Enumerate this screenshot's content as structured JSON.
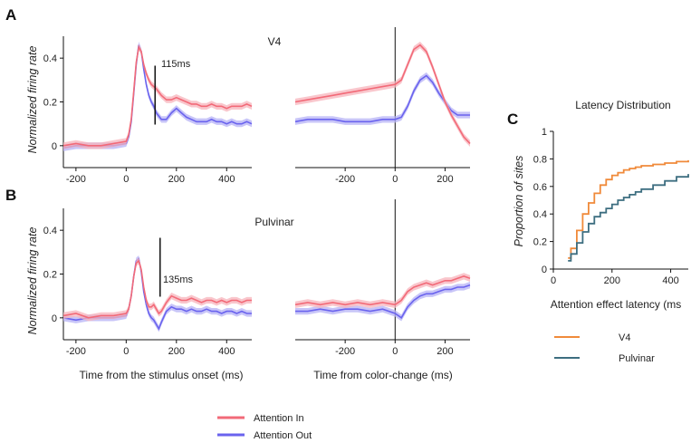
{
  "colors": {
    "attention_in": "#f26a78",
    "attention_in_band": "#f7b3bb",
    "attention_out": "#6a63ee",
    "attention_out_band": "#b6b1f6",
    "v4_latency": "#f08a3a",
    "pulvinar_latency": "#3d6e80",
    "axis": "#111111"
  },
  "panels": {
    "a_letter": "A",
    "b_letter": "B",
    "c_letter": "C",
    "a_title": "V4",
    "b_title": "Pulvinar",
    "a_marker": "115ms",
    "b_marker": "135ms",
    "ylabel": "Normalized firing rate",
    "xlabel_stim": "Time from the stimulus onset (ms)",
    "xlabel_color": "Time from color-change (ms)",
    "y_ticks": [
      "0",
      "0.2",
      "0.4"
    ],
    "x_ticks_stim": [
      "-200",
      "0",
      "200",
      "400"
    ],
    "x_ticks_color": [
      "-200",
      "0",
      "200"
    ]
  },
  "legend_main": {
    "attention_in": "Attention In",
    "attention_out": "Attention Out"
  },
  "panel_c": {
    "title": "Latency Distribution",
    "ylabel": "Proportion of sites",
    "xlabel": "Attention effect latency (ms",
    "y_ticks": [
      "0",
      "0.2",
      "0.4",
      "0.6",
      "0.8",
      "1"
    ],
    "x_ticks": [
      "0",
      "200",
      "400"
    ],
    "legend_v4": "V4",
    "legend_pulvinar": "Pulvinar"
  },
  "chart_data": [
    {
      "type": "line",
      "panel": "A-left",
      "title": "V4",
      "xlabel": "",
      "ylabel": "Normalized firing rate",
      "xlim": [
        -250,
        500
      ],
      "ylim": [
        -0.1,
        0.5
      ],
      "marker_latency_ms": 115,
      "series": [
        {
          "name": "Attention In",
          "x": [
            -250,
            -200,
            -150,
            -100,
            -50,
            0,
            10,
            20,
            30,
            40,
            50,
            60,
            70,
            80,
            90,
            100,
            110,
            120,
            140,
            160,
            180,
            200,
            220,
            240,
            260,
            280,
            300,
            320,
            340,
            360,
            380,
            400,
            420,
            440,
            460,
            480,
            500
          ],
          "y": [
            0,
            0.01,
            0,
            0,
            0.01,
            0.02,
            0.05,
            0.12,
            0.25,
            0.38,
            0.45,
            0.43,
            0.37,
            0.33,
            0.3,
            0.28,
            0.27,
            0.26,
            0.23,
            0.21,
            0.21,
            0.22,
            0.21,
            0.2,
            0.19,
            0.19,
            0.18,
            0.18,
            0.19,
            0.18,
            0.18,
            0.17,
            0.18,
            0.18,
            0.18,
            0.19,
            0.18
          ]
        },
        {
          "name": "Attention Out",
          "x": [
            -250,
            -200,
            -150,
            -100,
            -50,
            0,
            10,
            20,
            30,
            40,
            50,
            60,
            70,
            80,
            90,
            100,
            110,
            120,
            140,
            160,
            180,
            200,
            220,
            240,
            260,
            280,
            300,
            320,
            340,
            360,
            380,
            400,
            420,
            440,
            460,
            480,
            500
          ],
          "y": [
            -0.01,
            0,
            0,
            0,
            0,
            0.01,
            0.04,
            0.11,
            0.24,
            0.37,
            0.46,
            0.43,
            0.35,
            0.28,
            0.23,
            0.2,
            0.18,
            0.15,
            0.12,
            0.12,
            0.15,
            0.17,
            0.15,
            0.13,
            0.12,
            0.11,
            0.11,
            0.11,
            0.12,
            0.11,
            0.11,
            0.1,
            0.11,
            0.1,
            0.1,
            0.11,
            0.1
          ]
        }
      ]
    },
    {
      "type": "line",
      "panel": "A-right",
      "xlabel": "",
      "ylabel": "",
      "xlim": [
        -400,
        300
      ],
      "ylim": [
        -0.1,
        0.5
      ],
      "series": [
        {
          "name": "Attention In",
          "x": [
            -400,
            -350,
            -300,
            -250,
            -200,
            -150,
            -100,
            -50,
            0,
            25,
            50,
            75,
            100,
            125,
            150,
            175,
            200,
            225,
            250,
            275,
            300
          ],
          "y": [
            0.2,
            0.21,
            0.22,
            0.23,
            0.24,
            0.25,
            0.26,
            0.27,
            0.28,
            0.3,
            0.37,
            0.44,
            0.46,
            0.43,
            0.36,
            0.28,
            0.2,
            0.14,
            0.09,
            0.04,
            0.01
          ]
        },
        {
          "name": "Attention Out",
          "x": [
            -400,
            -350,
            -300,
            -250,
            -200,
            -150,
            -100,
            -50,
            0,
            25,
            50,
            75,
            100,
            125,
            150,
            175,
            200,
            225,
            250,
            275,
            300
          ],
          "y": [
            0.11,
            0.12,
            0.12,
            0.12,
            0.11,
            0.11,
            0.11,
            0.12,
            0.12,
            0.13,
            0.18,
            0.25,
            0.3,
            0.32,
            0.29,
            0.24,
            0.2,
            0.16,
            0.14,
            0.14,
            0.14
          ]
        }
      ]
    },
    {
      "type": "line",
      "panel": "B-left",
      "title": "Pulvinar",
      "xlabel": "Time from the stimulus onset (ms)",
      "ylabel": "Normalized firing rate",
      "xlim": [
        -250,
        500
      ],
      "ylim": [
        -0.1,
        0.5
      ],
      "marker_latency_ms": 135,
      "series": [
        {
          "name": "Attention In",
          "x": [
            -250,
            -200,
            -150,
            -100,
            -50,
            0,
            10,
            20,
            30,
            40,
            50,
            60,
            70,
            80,
            90,
            100,
            110,
            120,
            130,
            140,
            160,
            180,
            200,
            220,
            240,
            260,
            280,
            300,
            320,
            340,
            360,
            380,
            400,
            420,
            440,
            460,
            480,
            500
          ],
          "y": [
            0.01,
            0.02,
            0,
            0.01,
            0.01,
            0.02,
            0.04,
            0.1,
            0.19,
            0.25,
            0.26,
            0.22,
            0.14,
            0.08,
            0.05,
            0.05,
            0.06,
            0.04,
            0.02,
            0.03,
            0.07,
            0.1,
            0.09,
            0.08,
            0.08,
            0.09,
            0.08,
            0.07,
            0.08,
            0.08,
            0.07,
            0.08,
            0.07,
            0.08,
            0.08,
            0.07,
            0.08,
            0.08
          ]
        },
        {
          "name": "Attention Out",
          "x": [
            -250,
            -200,
            -150,
            -100,
            -50,
            0,
            10,
            20,
            30,
            40,
            50,
            60,
            70,
            80,
            90,
            100,
            110,
            120,
            130,
            140,
            160,
            180,
            200,
            220,
            240,
            260,
            280,
            300,
            320,
            340,
            360,
            380,
            400,
            420,
            440,
            460,
            480,
            500
          ],
          "y": [
            0,
            -0.01,
            0,
            0,
            0,
            0.01,
            0.04,
            0.1,
            0.19,
            0.26,
            0.27,
            0.21,
            0.12,
            0.06,
            0.02,
            0,
            -0.01,
            -0.03,
            -0.05,
            -0.02,
            0.03,
            0.05,
            0.04,
            0.04,
            0.03,
            0.04,
            0.03,
            0.03,
            0.04,
            0.03,
            0.03,
            0.02,
            0.03,
            0.03,
            0.02,
            0.03,
            0.02,
            0.02
          ]
        }
      ]
    },
    {
      "type": "line",
      "panel": "B-right",
      "xlabel": "Time from color-change (ms)",
      "ylabel": "",
      "xlim": [
        -400,
        300
      ],
      "ylim": [
        -0.1,
        0.5
      ],
      "series": [
        {
          "name": "Attention In",
          "x": [
            -400,
            -350,
            -300,
            -250,
            -200,
            -150,
            -100,
            -50,
            0,
            25,
            50,
            75,
            100,
            125,
            150,
            175,
            200,
            225,
            250,
            275,
            300
          ],
          "y": [
            0.06,
            0.07,
            0.06,
            0.07,
            0.06,
            0.07,
            0.06,
            0.07,
            0.06,
            0.08,
            0.12,
            0.14,
            0.15,
            0.16,
            0.15,
            0.16,
            0.17,
            0.17,
            0.18,
            0.19,
            0.18
          ]
        },
        {
          "name": "Attention Out",
          "x": [
            -400,
            -350,
            -300,
            -250,
            -200,
            -150,
            -100,
            -50,
            0,
            25,
            50,
            75,
            100,
            125,
            150,
            175,
            200,
            225,
            250,
            275,
            300
          ],
          "y": [
            0.03,
            0.03,
            0.04,
            0.03,
            0.04,
            0.04,
            0.03,
            0.04,
            0.02,
            0.0,
            0.05,
            0.08,
            0.1,
            0.11,
            0.11,
            0.12,
            0.13,
            0.13,
            0.14,
            0.14,
            0.15
          ]
        }
      ]
    },
    {
      "type": "line",
      "panel": "C",
      "title": "Latency Distribution",
      "xlabel": "Attention effect latency (ms",
      "ylabel": "Proportion of sites",
      "xlim": [
        0,
        460
      ],
      "ylim": [
        0,
        1
      ],
      "series": [
        {
          "name": "V4",
          "x": [
            50,
            60,
            80,
            100,
            120,
            140,
            160,
            180,
            200,
            220,
            240,
            260,
            280,
            300,
            340,
            380,
            420,
            460
          ],
          "y": [
            0.08,
            0.15,
            0.28,
            0.4,
            0.48,
            0.55,
            0.61,
            0.65,
            0.68,
            0.7,
            0.72,
            0.73,
            0.74,
            0.75,
            0.76,
            0.77,
            0.78,
            0.79
          ]
        },
        {
          "name": "Pulvinar",
          "x": [
            50,
            60,
            80,
            100,
            120,
            140,
            160,
            180,
            200,
            220,
            240,
            260,
            280,
            300,
            340,
            380,
            420,
            460
          ],
          "y": [
            0.06,
            0.11,
            0.19,
            0.27,
            0.33,
            0.38,
            0.41,
            0.44,
            0.47,
            0.5,
            0.52,
            0.54,
            0.56,
            0.58,
            0.61,
            0.64,
            0.67,
            0.69
          ]
        }
      ]
    }
  ]
}
